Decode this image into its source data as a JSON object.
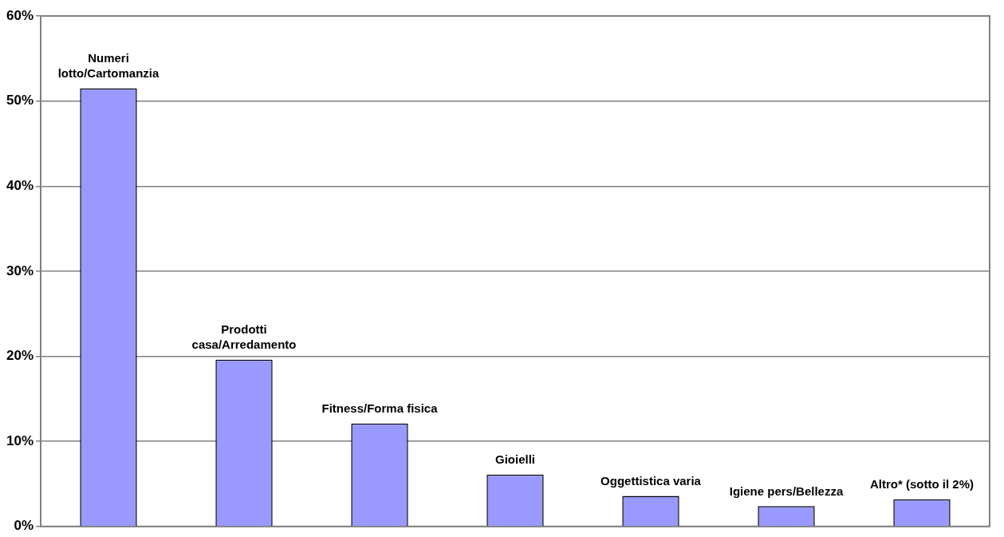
{
  "chart_data": {
    "type": "bar",
    "categories": [
      "Numeri\nlotto/Cartomanzia",
      "Prodotti\ncasa/Arredamento",
      "Fitness/Forma fisica",
      "Gioielli",
      "Oggettistica varia",
      "Igiene pers/Bellezza",
      "Altro* (sotto il 2%)"
    ],
    "values": [
      51.5,
      19.6,
      12.1,
      6.1,
      3.6,
      2.4,
      3.2
    ],
    "color": "#9999ff",
    "ylim": [
      0,
      60
    ],
    "yticks": [
      {
        "value": 0,
        "label": "0%"
      },
      {
        "value": 10,
        "label": "10%"
      },
      {
        "value": 20,
        "label": "20%"
      },
      {
        "value": 30,
        "label": "30%"
      },
      {
        "value": 40,
        "label": "40%"
      },
      {
        "value": 50,
        "label": "50%"
      },
      {
        "value": 60,
        "label": "60%"
      }
    ],
    "grid": "y",
    "tick_labels": "y",
    "legend": false
  }
}
